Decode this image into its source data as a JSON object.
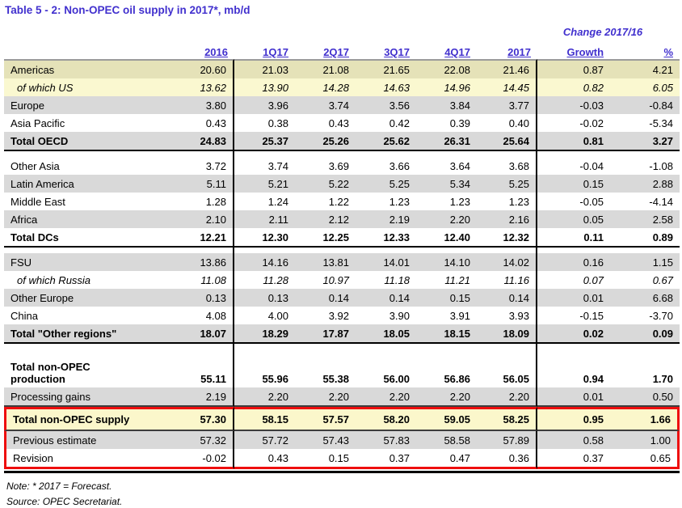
{
  "title": "Table 5 - 2: Non-OPEC oil supply in 2017*, mb/d",
  "table": {
    "change_header": "Change 2017/16",
    "columns": [
      "2016",
      "1Q17",
      "2Q17",
      "3Q17",
      "4Q17",
      "2017",
      "Growth",
      "%"
    ],
    "sections": [
      {
        "rows": [
          {
            "label": "Americas",
            "style": [
              "bg-khaki"
            ],
            "values": [
              "20.60",
              "21.03",
              "21.08",
              "21.65",
              "22.08",
              "21.46",
              "0.87",
              "4.21"
            ]
          },
          {
            "label": "of which US",
            "style": [
              "bg-lightyellow",
              "italic",
              "indent"
            ],
            "values": [
              "13.62",
              "13.90",
              "14.28",
              "14.63",
              "14.96",
              "14.45",
              "0.82",
              "6.05"
            ]
          },
          {
            "label": "Europe",
            "style": [
              "bg-gray"
            ],
            "values": [
              "3.80",
              "3.96",
              "3.74",
              "3.56",
              "3.84",
              "3.77",
              "-0.03",
              "-0.84"
            ]
          },
          {
            "label": "Asia Pacific",
            "style": [],
            "values": [
              "0.43",
              "0.38",
              "0.43",
              "0.42",
              "0.39",
              "0.40",
              "-0.02",
              "-5.34"
            ]
          },
          {
            "label": "Total OECD",
            "style": [
              "bg-gray",
              "bold",
              "section-end"
            ],
            "values": [
              "24.83",
              "25.37",
              "25.26",
              "25.62",
              "26.31",
              "25.64",
              "0.81",
              "3.27"
            ]
          }
        ]
      },
      {
        "rows": [
          {
            "label": "Other Asia",
            "style": [],
            "values": [
              "3.72",
              "3.74",
              "3.69",
              "3.66",
              "3.64",
              "3.68",
              "-0.04",
              "-1.08"
            ]
          },
          {
            "label": "Latin America",
            "style": [
              "bg-gray"
            ],
            "values": [
              "5.11",
              "5.21",
              "5.22",
              "5.25",
              "5.34",
              "5.25",
              "0.15",
              "2.88"
            ]
          },
          {
            "label": "Middle East",
            "style": [],
            "values": [
              "1.28",
              "1.24",
              "1.22",
              "1.23",
              "1.23",
              "1.23",
              "-0.05",
              "-4.14"
            ]
          },
          {
            "label": "Africa",
            "style": [
              "bg-gray"
            ],
            "values": [
              "2.10",
              "2.11",
              "2.12",
              "2.19",
              "2.20",
              "2.16",
              "0.05",
              "2.58"
            ]
          },
          {
            "label": "Total DCs",
            "style": [
              "bold",
              "section-end"
            ],
            "values": [
              "12.21",
              "12.30",
              "12.25",
              "12.33",
              "12.40",
              "12.32",
              "0.11",
              "0.89"
            ]
          }
        ]
      },
      {
        "rows": [
          {
            "label": "FSU",
            "style": [
              "bg-gray"
            ],
            "values": [
              "13.86",
              "14.16",
              "13.81",
              "14.01",
              "14.10",
              "14.02",
              "0.16",
              "1.15"
            ]
          },
          {
            "label": "of which Russia",
            "style": [
              "italic",
              "indent"
            ],
            "values": [
              "11.08",
              "11.28",
              "10.97",
              "11.18",
              "11.21",
              "11.16",
              "0.07",
              "0.67"
            ]
          },
          {
            "label": "Other Europe",
            "style": [
              "bg-gray"
            ],
            "values": [
              "0.13",
              "0.13",
              "0.14",
              "0.14",
              "0.15",
              "0.14",
              "0.01",
              "6.68"
            ]
          },
          {
            "label": "China",
            "style": [],
            "values": [
              "4.08",
              "4.00",
              "3.92",
              "3.90",
              "3.91",
              "3.93",
              "-0.15",
              "-3.70"
            ]
          },
          {
            "label": "Total \"Other regions\"",
            "style": [
              "bg-gray",
              "bold",
              "section-end"
            ],
            "values": [
              "18.07",
              "18.29",
              "17.87",
              "18.05",
              "18.15",
              "18.09",
              "0.02",
              "0.09"
            ]
          }
        ]
      },
      {
        "rows": [
          {
            "label": "Total non-OPEC production",
            "label_lines": [
              "Total non-OPEC",
              "production"
            ],
            "style": [
              "bold",
              "tall"
            ],
            "values": [
              "55.11",
              "55.96",
              "55.38",
              "56.00",
              "56.86",
              "56.05",
              "0.94",
              "1.70"
            ]
          },
          {
            "label": "Processing gains",
            "style": [
              "bg-gray",
              "dark-bottom"
            ],
            "values": [
              "2.19",
              "2.20",
              "2.20",
              "2.20",
              "2.20",
              "2.20",
              "0.01",
              "0.50"
            ]
          },
          {
            "label": "Total non-OPEC supply",
            "style": [
              "bg-yellow",
              "bold",
              "tall26",
              "red-top",
              "red-sides",
              "dark-bottom"
            ],
            "values": [
              "57.30",
              "58.15",
              "57.57",
              "58.20",
              "59.05",
              "58.25",
              "0.95",
              "1.66"
            ]
          },
          {
            "label": "Previous estimate",
            "style": [
              "bg-gray",
              "red-sides"
            ],
            "values": [
              "57.32",
              "57.72",
              "57.43",
              "57.83",
              "58.58",
              "57.89",
              "0.58",
              "1.00"
            ]
          },
          {
            "label": "Revision",
            "style": [
              "red-sides",
              "red-bottom"
            ],
            "values": [
              "-0.02",
              "0.43",
              "0.15",
              "0.37",
              "0.47",
              "0.36",
              "0.37",
              "0.65"
            ]
          }
        ]
      }
    ]
  },
  "notes": {
    "note": "Note: * 2017 = Forecast.",
    "source": "Source: OPEC Secretariat."
  },
  "colors": {
    "heading_blue": "#4130CE",
    "stripe_gray": "#D9D9D9",
    "highlight_yellow": "#FBF7CB",
    "highlight_khaki": "#E5E2B8",
    "emphasis_red": "#EE0E0E"
  }
}
